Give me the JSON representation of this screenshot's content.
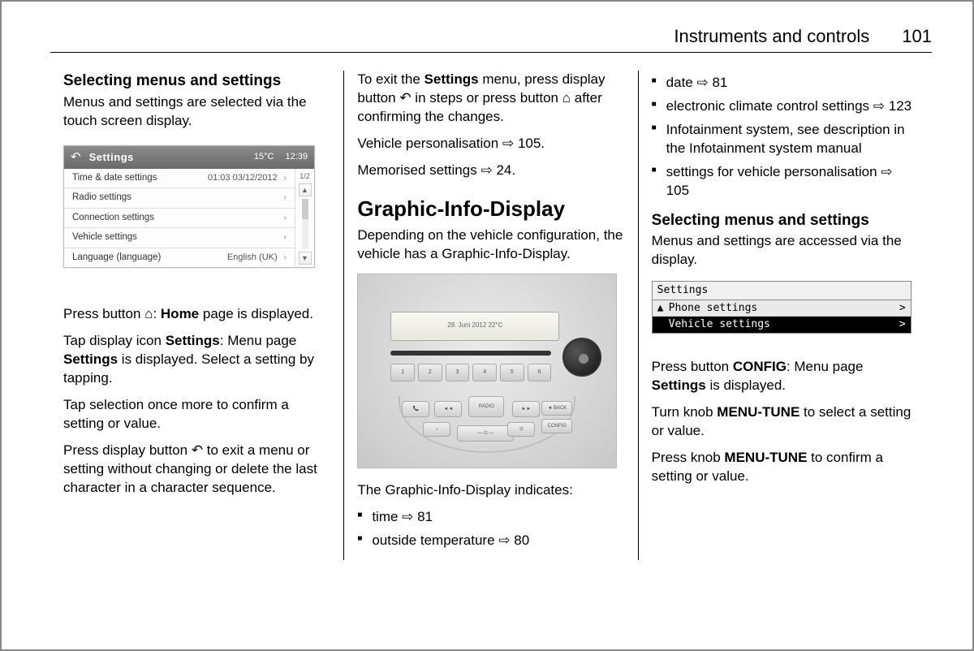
{
  "header": {
    "title": "Instruments and controls",
    "page": "101"
  },
  "ref_arrow": "⇨",
  "home_icon": "⌂",
  "back_icon": "↶",
  "col1": {
    "h_sub": "Selecting menus and settings",
    "intro": "Menus and settings are selected via the touch screen display.",
    "settings_fig": {
      "title": "Settings",
      "temp": "15°C",
      "time": "12:39",
      "page_indicator": "1/2",
      "rows": [
        {
          "label": "Time & date settings",
          "value": "01:03 03/12/2012"
        },
        {
          "label": "Radio settings",
          "value": ""
        },
        {
          "label": "Connection settings",
          "value": ""
        },
        {
          "label": "Vehicle settings",
          "value": ""
        },
        {
          "label": "Language (language)",
          "value": "English (UK)"
        }
      ]
    },
    "p_home_1": "Press button ",
    "p_home_2": ": ",
    "p_home_bold": "Home",
    "p_home_3": " page is displayed.",
    "p_settings_1": "Tap display icon ",
    "p_settings_b1": "Settings",
    "p_settings_2": ": Menu page ",
    "p_settings_b2": "Settings",
    "p_settings_3": " is displayed. Select a setting by tapping.",
    "p_confirm": "Tap selection once more to confirm a setting or value.",
    "p_exit_1": "Press display button ",
    "p_exit_2": " to exit a menu or setting without changing or delete the last character in a character sequence."
  },
  "col2": {
    "p_exit_settings_1": "To exit the ",
    "p_exit_settings_b": "Settings",
    "p_exit_settings_2": " menu, press display button ",
    "p_exit_settings_3": " in steps or press button ",
    "p_exit_settings_4": " after confirming the changes.",
    "p_personalisation": "Vehicle personalisation ",
    "p_personalisation_ref": "105.",
    "p_memorised": "Memorised settings ",
    "p_memorised_ref": "24.",
    "h_sec": "Graphic-Info-Display",
    "p_gid": "Depending on the vehicle configuration, the vehicle has a Graphic-Info-Display.",
    "radio_lcd": "28. Juni 2012    22°C",
    "radio_btns": {
      "back": "◄ BACK",
      "config": "CONFIG",
      "radio": "RADIO"
    },
    "p_indicates": "The Graphic-Info-Display indicates:",
    "li_time": "time ",
    "li_time_ref": "81",
    "li_temp": "outside temperature ",
    "li_temp_ref": "80"
  },
  "col3": {
    "li_date": "date ",
    "li_date_ref": "81",
    "li_climate": "electronic climate control settings ",
    "li_climate_ref": "123",
    "li_infotainment": "Infotainment system, see description in the Infotainment system manual",
    "li_vehicle": "settings for vehicle personalisation ",
    "li_vehicle_ref": "105",
    "h_sub": "Selecting menus and settings",
    "p_access": "Menus and settings are accessed via the display.",
    "gid_fig": {
      "header": "Settings",
      "row1": "Phone settings",
      "row2": "Vehicle settings"
    },
    "p_config_1": "Press button ",
    "p_config_b": "CONFIG",
    "p_config_2": ": Menu page ",
    "p_config_b2": "Settings",
    "p_config_3": " is displayed.",
    "p_turn_1": "Turn knob ",
    "p_turn_b": "MENU-TUNE",
    "p_turn_2": " to select a setting or value.",
    "p_press_1": "Press knob ",
    "p_press_b": "MENU-TUNE",
    "p_press_2": " to confirm a setting or value."
  }
}
